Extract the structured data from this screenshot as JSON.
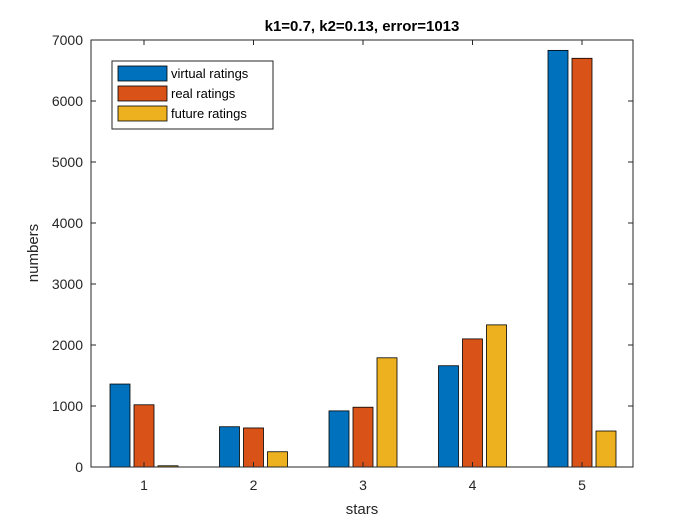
{
  "chart_data": {
    "type": "bar",
    "title": "k1=0.7, k2=0.13, error=1013",
    "xlabel": "stars",
    "ylabel": "numbers",
    "categories": [
      "1",
      "2",
      "3",
      "4",
      "5"
    ],
    "ylim": [
      0,
      7000
    ],
    "yticks": [
      "0",
      "1000",
      "2000",
      "3000",
      "4000",
      "5000",
      "6000",
      "7000"
    ],
    "grid": false,
    "legend_position": "top-left",
    "series": [
      {
        "name": "virtual ratings",
        "color": "#0072BD",
        "values": [
          1360,
          660,
          920,
          1660,
          6830
        ]
      },
      {
        "name": "real ratings",
        "color": "#D95319",
        "values": [
          1020,
          640,
          980,
          2100,
          6700
        ]
      },
      {
        "name": "future ratings",
        "color": "#EDB120",
        "values": [
          20,
          250,
          1790,
          2330,
          590
        ]
      }
    ]
  }
}
